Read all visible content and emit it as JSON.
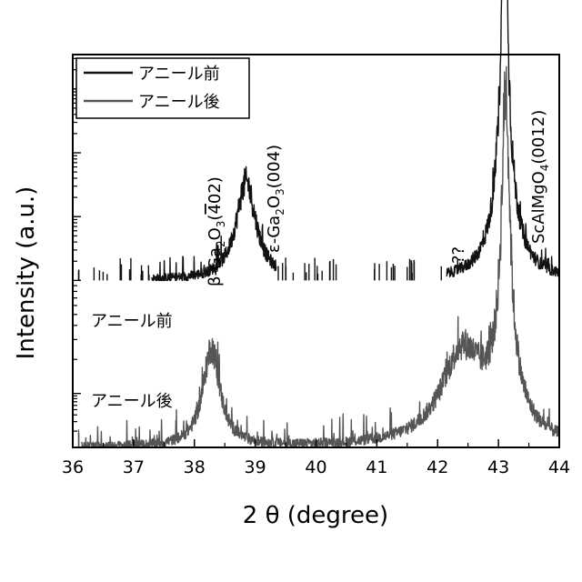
{
  "chart_data": {
    "type": "line",
    "xlabel": "2 θ (degree)",
    "ylabel": "Intensity (a.u.)",
    "xlim": [
      36,
      44
    ],
    "xticks": [
      "36",
      "37",
      "38",
      "39",
      "40",
      "41",
      "42",
      "43",
      "44"
    ],
    "y_scale": "log (stacked)",
    "ylim": [
      0,
      8
    ],
    "grid": false,
    "legend_position": "top-left",
    "legend": [
      "アニール前",
      "アニール後"
    ],
    "series": [
      {
        "name": "アニール前",
        "color": "#111111",
        "label": "アニール前",
        "baseline": 3.4,
        "peaks": [
          {
            "x": 38.85,
            "height": 2.0,
            "width": 0.2
          },
          {
            "x": 43.1,
            "height": 5.8,
            "width": 0.07
          },
          {
            "x": 43.1,
            "height": 1.7,
            "width": 0.25
          }
        ],
        "gaps": [
          [
            36.0,
            37.3
          ],
          [
            39.35,
            42.15
          ]
        ]
      },
      {
        "name": "アニール後",
        "color": "#555555",
        "label": "アニール後",
        "baseline": 0.0,
        "peaks": [
          {
            "x": 38.28,
            "height": 2.0,
            "width": 0.17
          },
          {
            "x": 42.4,
            "height": 1.85,
            "width": 0.42
          },
          {
            "x": 43.12,
            "height": 5.7,
            "width": 0.08
          },
          {
            "x": 43.12,
            "height": 1.2,
            "width": 0.3
          }
        ],
        "gaps": [
          [
            36.0,
            36.15
          ]
        ]
      }
    ],
    "annotations": [
      {
        "label": "β-Ga₂O₃(402)",
        "x": 38.3
      },
      {
        "label": "ε-Ga₂O₃(004)",
        "x": 38.95
      },
      {
        "label": "??",
        "x": 42.3
      },
      {
        "label": "ScAlMgO₄(0012)",
        "x": 43.3
      }
    ]
  }
}
